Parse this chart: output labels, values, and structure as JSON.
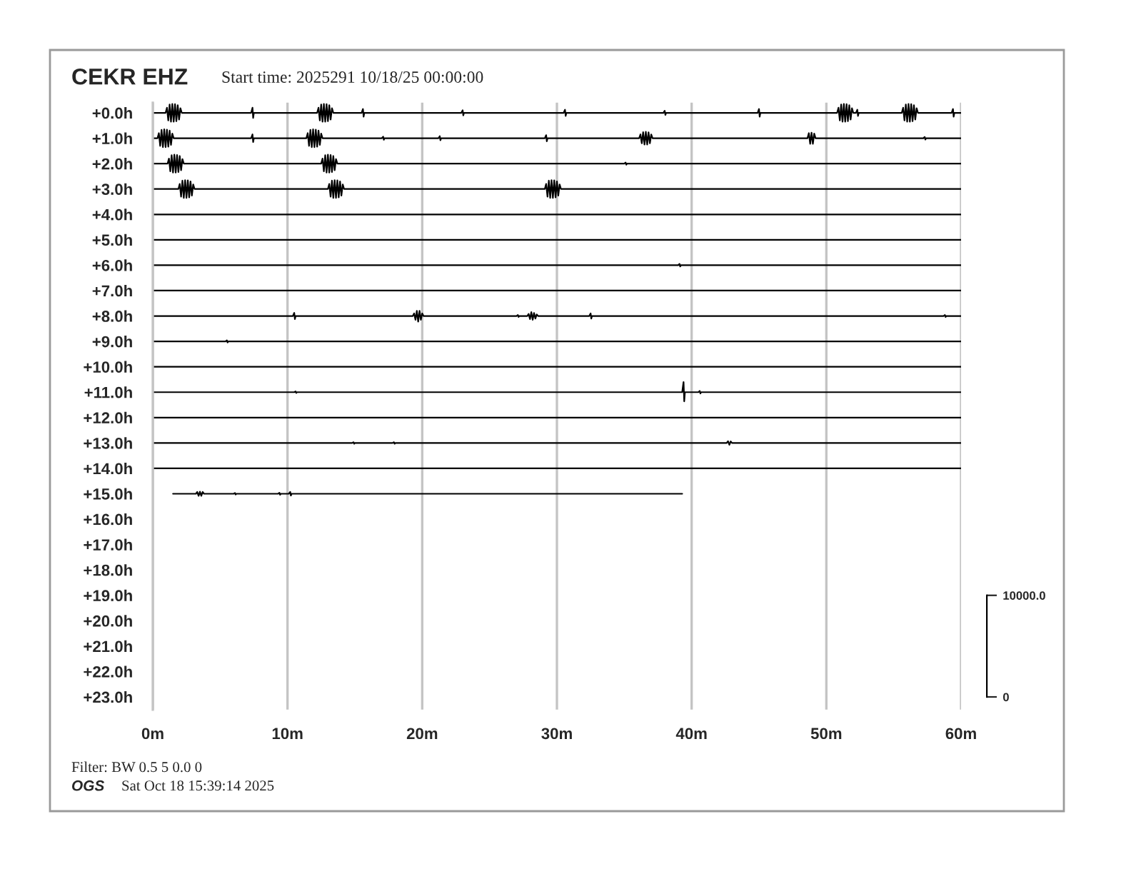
{
  "chart_data": {
    "type": "line",
    "title": "CEKR EHZ",
    "subtitle": "Start time: 2025291 10/18/25 00:00:00",
    "annotations": [
      "Filter: BW 0.5 5 0.0 0",
      "OGS",
      "Sat Oct 18 15:39:14 2025"
    ],
    "xlim": [
      0,
      60
    ],
    "xticks": [
      {
        "value": 0,
        "label": "0m"
      },
      {
        "value": 10,
        "label": "10m"
      },
      {
        "value": 20,
        "label": "20m"
      },
      {
        "value": 30,
        "label": "30m"
      },
      {
        "value": 40,
        "label": "40m"
      },
      {
        "value": 50,
        "label": "50m"
      },
      {
        "value": 60,
        "label": "60m"
      }
    ],
    "ylim": [
      23.5,
      -0.4
    ],
    "yticks": [
      {
        "value": 0,
        "label": "+0.0h"
      },
      {
        "value": 1,
        "label": "+1.0h"
      },
      {
        "value": 2,
        "label": "+2.0h"
      },
      {
        "value": 3,
        "label": "+3.0h"
      },
      {
        "value": 4,
        "label": "+4.0h"
      },
      {
        "value": 5,
        "label": "+5.0h"
      },
      {
        "value": 6,
        "label": "+6.0h"
      },
      {
        "value": 7,
        "label": "+7.0h"
      },
      {
        "value": 8,
        "label": "+8.0h"
      },
      {
        "value": 9,
        "label": "+9.0h"
      },
      {
        "value": 10,
        "label": "+10.0h"
      },
      {
        "value": 11,
        "label": "+11.0h"
      },
      {
        "value": 12,
        "label": "+12.0h"
      },
      {
        "value": 13,
        "label": "+13.0h"
      },
      {
        "value": 14,
        "label": "+14.0h"
      },
      {
        "value": 15,
        "label": "+15.0h"
      },
      {
        "value": 16,
        "label": "+16.0h"
      },
      {
        "value": 17,
        "label": "+17.0h"
      },
      {
        "value": 18,
        "label": "+18.0h"
      },
      {
        "value": 19,
        "label": "+19.0h"
      },
      {
        "value": 20,
        "label": "+20.0h"
      },
      {
        "value": 21,
        "label": "+21.0h"
      },
      {
        "value": 22,
        "label": "+22.0h"
      },
      {
        "value": 23,
        "label": "+23.0h"
      }
    ],
    "y2lim": [
      -1250,
      58500
    ],
    "y2ticks": [
      0,
      {
        "value": 10000,
        "label": "10000.0"
      }
    ],
    "grid": "x",
    "series": [
      {
        "color": "#000000",
        "x": [
          0,
          0.95,
          1.05,
          1.15,
          1.25,
          1.35,
          1.45,
          1.55,
          1.65,
          1.75,
          1.85,
          1.95,
          2.05,
          2.15,
          7.3,
          7.4,
          7.45,
          7.5,
          12.2,
          12.3,
          12.4,
          12.5,
          12.6,
          12.7,
          12.8,
          12.9,
          13.0,
          13.1,
          13.2,
          13.3,
          13.4,
          15.5,
          15.6,
          15.65,
          15.7,
          22.9,
          23.0,
          23.05,
          23.1,
          30.5,
          30.6,
          30.65,
          30.7,
          37.9,
          38.0,
          38.05,
          38.1,
          44.9,
          45.0,
          45.05,
          45.1,
          50.8,
          50.9,
          51.0,
          51.1,
          51.2,
          51.3,
          51.4,
          51.5,
          51.6,
          51.7,
          51.8,
          51.9,
          52.0,
          52.2,
          52.3,
          52.35,
          52.4,
          55.6,
          55.7,
          55.8,
          55.9,
          56.0,
          56.1,
          56.2,
          56.3,
          56.4,
          56.5,
          56.6,
          56.7,
          56.8,
          59.3,
          59.4,
          59.45,
          59.5,
          60
        ],
        "values": [
          0,
          0,
          -0.2,
          0.3,
          -0.33,
          0.35,
          -0.35,
          0.35,
          -0.34,
          0.33,
          -0.3,
          0.26,
          -0.18,
          0,
          0,
          -0.2,
          0.2,
          0,
          0,
          -0.2,
          0.3,
          -0.33,
          0.35,
          -0.35,
          0.35,
          -0.34,
          0.33,
          -0.3,
          0.26,
          -0.18,
          0,
          0,
          -0.15,
          0.15,
          0,
          0,
          -0.1,
          0.1,
          0,
          0,
          -0.12,
          0.12,
          0,
          0,
          -0.08,
          0.08,
          0,
          0,
          -0.15,
          0.15,
          0,
          0,
          -0.2,
          0.3,
          -0.33,
          0.35,
          -0.35,
          0.35,
          -0.34,
          0.33,
          -0.3,
          0.26,
          -0.18,
          0,
          0,
          -0.12,
          0.12,
          0,
          0,
          -0.2,
          0.3,
          -0.33,
          0.35,
          -0.35,
          0.35,
          -0.34,
          0.33,
          -0.3,
          0.26,
          -0.18,
          0,
          0,
          -0.15,
          0.15,
          0,
          0
        ]
      },
      {
        "color": "#000000",
        "x": [
          0,
          0.35,
          0.45,
          0.55,
          0.65,
          0.75,
          0.85,
          0.95,
          1.05,
          1.15,
          1.25,
          1.35,
          1.45,
          1.55,
          7.3,
          7.4,
          7.45,
          7.5,
          11.4,
          11.5,
          11.6,
          11.7,
          11.8,
          11.9,
          12.0,
          12.1,
          12.2,
          12.3,
          12.4,
          12.5,
          12.6,
          17.0,
          17.1,
          17.15,
          17.2,
          21.2,
          21.3,
          21.35,
          21.4,
          29.1,
          29.2,
          29.25,
          29.3,
          36.1,
          36.2,
          36.3,
          36.4,
          36.5,
          36.6,
          36.7,
          36.8,
          36.9,
          37.0,
          37.1,
          48.6,
          48.7,
          48.8,
          48.9,
          49.0,
          49.1,
          49.2,
          57.2,
          57.3,
          57.35,
          57.4,
          60
        ],
        "values": [
          1,
          1,
          0.8,
          1.3,
          0.67,
          1.35,
          0.65,
          1.35,
          0.66,
          1.33,
          0.7,
          1.26,
          0.82,
          1,
          1,
          0.85,
          1.15,
          1,
          1,
          0.8,
          1.3,
          0.67,
          1.35,
          0.65,
          1.35,
          0.66,
          1.33,
          0.7,
          1.26,
          0.82,
          1,
          1,
          0.94,
          1.06,
          1,
          1,
          0.92,
          1.08,
          1,
          1,
          0.88,
          1.12,
          1,
          1,
          0.85,
          1.2,
          0.76,
          1.25,
          0.75,
          1.25,
          0.77,
          1.2,
          0.85,
          1,
          1,
          0.8,
          1.22,
          0.78,
          1.22,
          0.82,
          1,
          1,
          0.95,
          1.05,
          1,
          1
        ]
      },
      {
        "color": "#000000",
        "x": [
          0,
          1.1,
          1.2,
          1.3,
          1.4,
          1.5,
          1.6,
          1.7,
          1.8,
          1.9,
          2.0,
          2.1,
          2.2,
          2.3,
          12.5,
          12.6,
          12.7,
          12.8,
          12.9,
          13.0,
          13.1,
          13.2,
          13.3,
          13.4,
          13.5,
          13.6,
          13.7,
          35.0,
          35.1,
          35.15,
          35.2,
          60
        ],
        "values": [
          2,
          2,
          1.8,
          2.3,
          1.67,
          2.35,
          1.65,
          2.35,
          1.66,
          2.33,
          1.7,
          2.26,
          1.82,
          2,
          2,
          1.8,
          2.3,
          1.67,
          2.35,
          1.65,
          2.35,
          1.66,
          2.33,
          1.7,
          2.26,
          1.82,
          2,
          2,
          1.96,
          2.04,
          2,
          2
        ]
      },
      {
        "color": "#000000",
        "x": [
          0,
          1.9,
          2.0,
          2.1,
          2.2,
          2.3,
          2.4,
          2.5,
          2.6,
          2.7,
          2.8,
          2.9,
          3.0,
          3.1,
          13.0,
          13.1,
          13.2,
          13.3,
          13.4,
          13.5,
          13.6,
          13.7,
          13.8,
          13.9,
          14.0,
          14.1,
          14.2,
          29.1,
          29.2,
          29.3,
          29.4,
          29.5,
          29.6,
          29.7,
          29.8,
          29.9,
          30.0,
          30.1,
          30.2,
          30.3,
          60
        ],
        "values": [
          3,
          3,
          2.8,
          3.3,
          2.67,
          3.35,
          2.65,
          3.35,
          2.66,
          3.33,
          2.7,
          3.26,
          2.82,
          3,
          3,
          2.8,
          3.3,
          2.67,
          3.35,
          2.65,
          3.35,
          2.66,
          3.33,
          2.7,
          3.26,
          2.82,
          3,
          3,
          2.8,
          3.3,
          2.67,
          3.35,
          2.65,
          3.35,
          2.66,
          3.33,
          2.7,
          3.26,
          2.82,
          3,
          3
        ]
      },
      {
        "color": "#000000",
        "x": [
          0,
          60
        ],
        "values": [
          4,
          4
        ]
      },
      {
        "color": "#000000",
        "x": [
          0,
          60
        ],
        "values": [
          5,
          5
        ]
      },
      {
        "color": "#000000",
        "x": [
          0,
          39.0,
          39.1,
          39.15,
          39.2,
          60
        ],
        "values": [
          6,
          6,
          5.95,
          6.05,
          6,
          6
        ]
      },
      {
        "color": "#000000",
        "x": [
          0,
          60
        ],
        "values": [
          7,
          7
        ]
      },
      {
        "color": "#000000",
        "x": [
          0,
          10.4,
          10.5,
          10.55,
          10.6,
          19.3,
          19.4,
          19.5,
          19.6,
          19.7,
          19.8,
          19.9,
          20.0,
          20.1,
          27.0,
          27.1,
          27.15,
          27.2,
          27.8,
          27.9,
          28.0,
          28.1,
          28.2,
          28.3,
          28.4,
          28.5,
          28.6,
          32.4,
          32.5,
          32.55,
          32.6,
          58.7,
          58.8,
          58.85,
          58.9,
          60
        ],
        "values": [
          8,
          8,
          7.88,
          8.12,
          8,
          8,
          7.9,
          8.15,
          7.8,
          8.22,
          7.8,
          8.15,
          7.9,
          8,
          8,
          7.96,
          8.04,
          8,
          8,
          7.92,
          8.12,
          7.85,
          8.15,
          7.88,
          8.1,
          7.94,
          8,
          8,
          7.9,
          8.1,
          8,
          8,
          7.96,
          8.04,
          8,
          8
        ]
      },
      {
        "color": "#000000",
        "x": [
          0,
          5.4,
          5.5,
          5.55,
          5.6,
          60
        ],
        "values": [
          9,
          9,
          8.96,
          9.04,
          9,
          9
        ]
      },
      {
        "color": "#000000",
        "x": [
          0,
          60
        ],
        "values": [
          10,
          10
        ]
      },
      {
        "color": "#000000",
        "x": [
          0,
          10.5,
          10.6,
          10.65,
          10.7,
          39.3,
          39.4,
          39.45,
          39.5,
          40.5,
          40.6,
          40.65,
          40.7,
          60
        ],
        "values": [
          11,
          11,
          10.97,
          11.03,
          11,
          11,
          10.6,
          11.36,
          11,
          11,
          10.95,
          11.05,
          11,
          11
        ]
      },
      {
        "color": "#000000",
        "x": [
          0,
          60
        ],
        "values": [
          12,
          12
        ]
      },
      {
        "color": "#000000",
        "x": [
          0,
          14.8,
          14.9,
          14.95,
          15.0,
          17.8,
          17.9,
          17.95,
          18.0,
          42.6,
          42.7,
          42.8,
          42.9,
          43.0,
          60
        ],
        "values": [
          13,
          13,
          12.97,
          13.03,
          13,
          13,
          12.97,
          13.03,
          13,
          13,
          12.93,
          13.07,
          12.94,
          13,
          13
        ]
      },
      {
        "color": "#000000",
        "x": [
          0,
          60
        ],
        "values": [
          14,
          14
        ]
      },
      {
        "color": "#000000",
        "x": [
          1.5,
          3.2,
          3.3,
          3.4,
          3.5,
          3.6,
          3.7,
          3.8,
          6.0,
          6.1,
          6.15,
          6.2,
          9.3,
          9.4,
          9.45,
          9.5,
          10.1,
          10.2,
          10.25,
          10.3,
          39.3
        ],
        "values": [
          15,
          15,
          14.93,
          15.08,
          14.92,
          15.08,
          14.93,
          15,
          15,
          14.97,
          15.03,
          15,
          15,
          14.96,
          15.04,
          15,
          15,
          14.93,
          15.07,
          15,
          15
        ]
      }
    ]
  }
}
